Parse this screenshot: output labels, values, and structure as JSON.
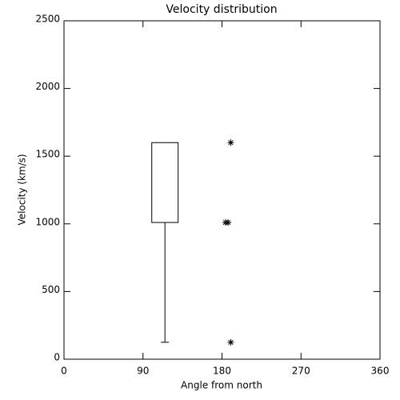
{
  "chart_data": {
    "type": "box",
    "title": "Velocity distribution",
    "xlabel": "Angle from north",
    "ylabel": "Velocity (km/s)",
    "xlim": [
      0,
      360
    ],
    "xticks": [
      0,
      90,
      180,
      270,
      360
    ],
    "ylim": [
      0,
      2500
    ],
    "yticks": [
      0,
      500,
      1000,
      1500,
      2000,
      2500
    ],
    "color": "#000000",
    "boxes": [
      {
        "position": 115,
        "width": 30,
        "low": 125,
        "q1": 1010,
        "q3": 1600,
        "high": 1600
      }
    ],
    "points": {
      "x": [
        190,
        184,
        187,
        190
      ],
      "y": [
        1600,
        1010,
        1010,
        125
      ]
    }
  }
}
